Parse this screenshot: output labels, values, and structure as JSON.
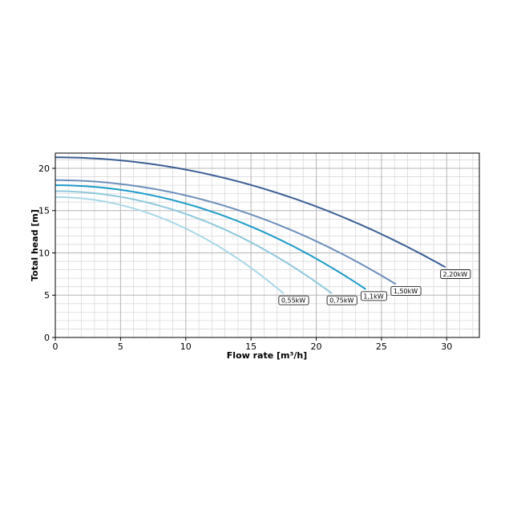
{
  "chart_data": {
    "type": "line",
    "title": "",
    "xlabel": "Flow rate [m³/h]",
    "ylabel": "Total head [m]",
    "xlim": [
      0,
      32.5
    ],
    "ylim": [
      0,
      21.8
    ],
    "xticks": [
      0,
      5,
      10,
      15,
      20,
      25,
      30
    ],
    "yticks": [
      0,
      5,
      10,
      15,
      20
    ],
    "grid": true,
    "legend": "none",
    "series": [
      {
        "name": "0,55kW",
        "color": "#a8d8e8",
        "h0": 16.6,
        "xmax": 17.5,
        "ymax": 5.2
      },
      {
        "name": "0,75kW",
        "color": "#8dc8dc",
        "h0": 17.3,
        "xmax": 21.2,
        "ymax": 5.2
      },
      {
        "name": "1,1kW",
        "color": "#1d9bc8",
        "h0": 18.0,
        "xmax": 23.8,
        "ymax": 5.7
      },
      {
        "name": "1,50kW",
        "color": "#6b8fba",
        "h0": 18.6,
        "xmax": 26.1,
        "ymax": 6.3
      },
      {
        "name": "2,20kW",
        "color": "#3b5f94",
        "h0": 21.3,
        "xmax": 29.9,
        "ymax": 8.3
      }
    ]
  }
}
